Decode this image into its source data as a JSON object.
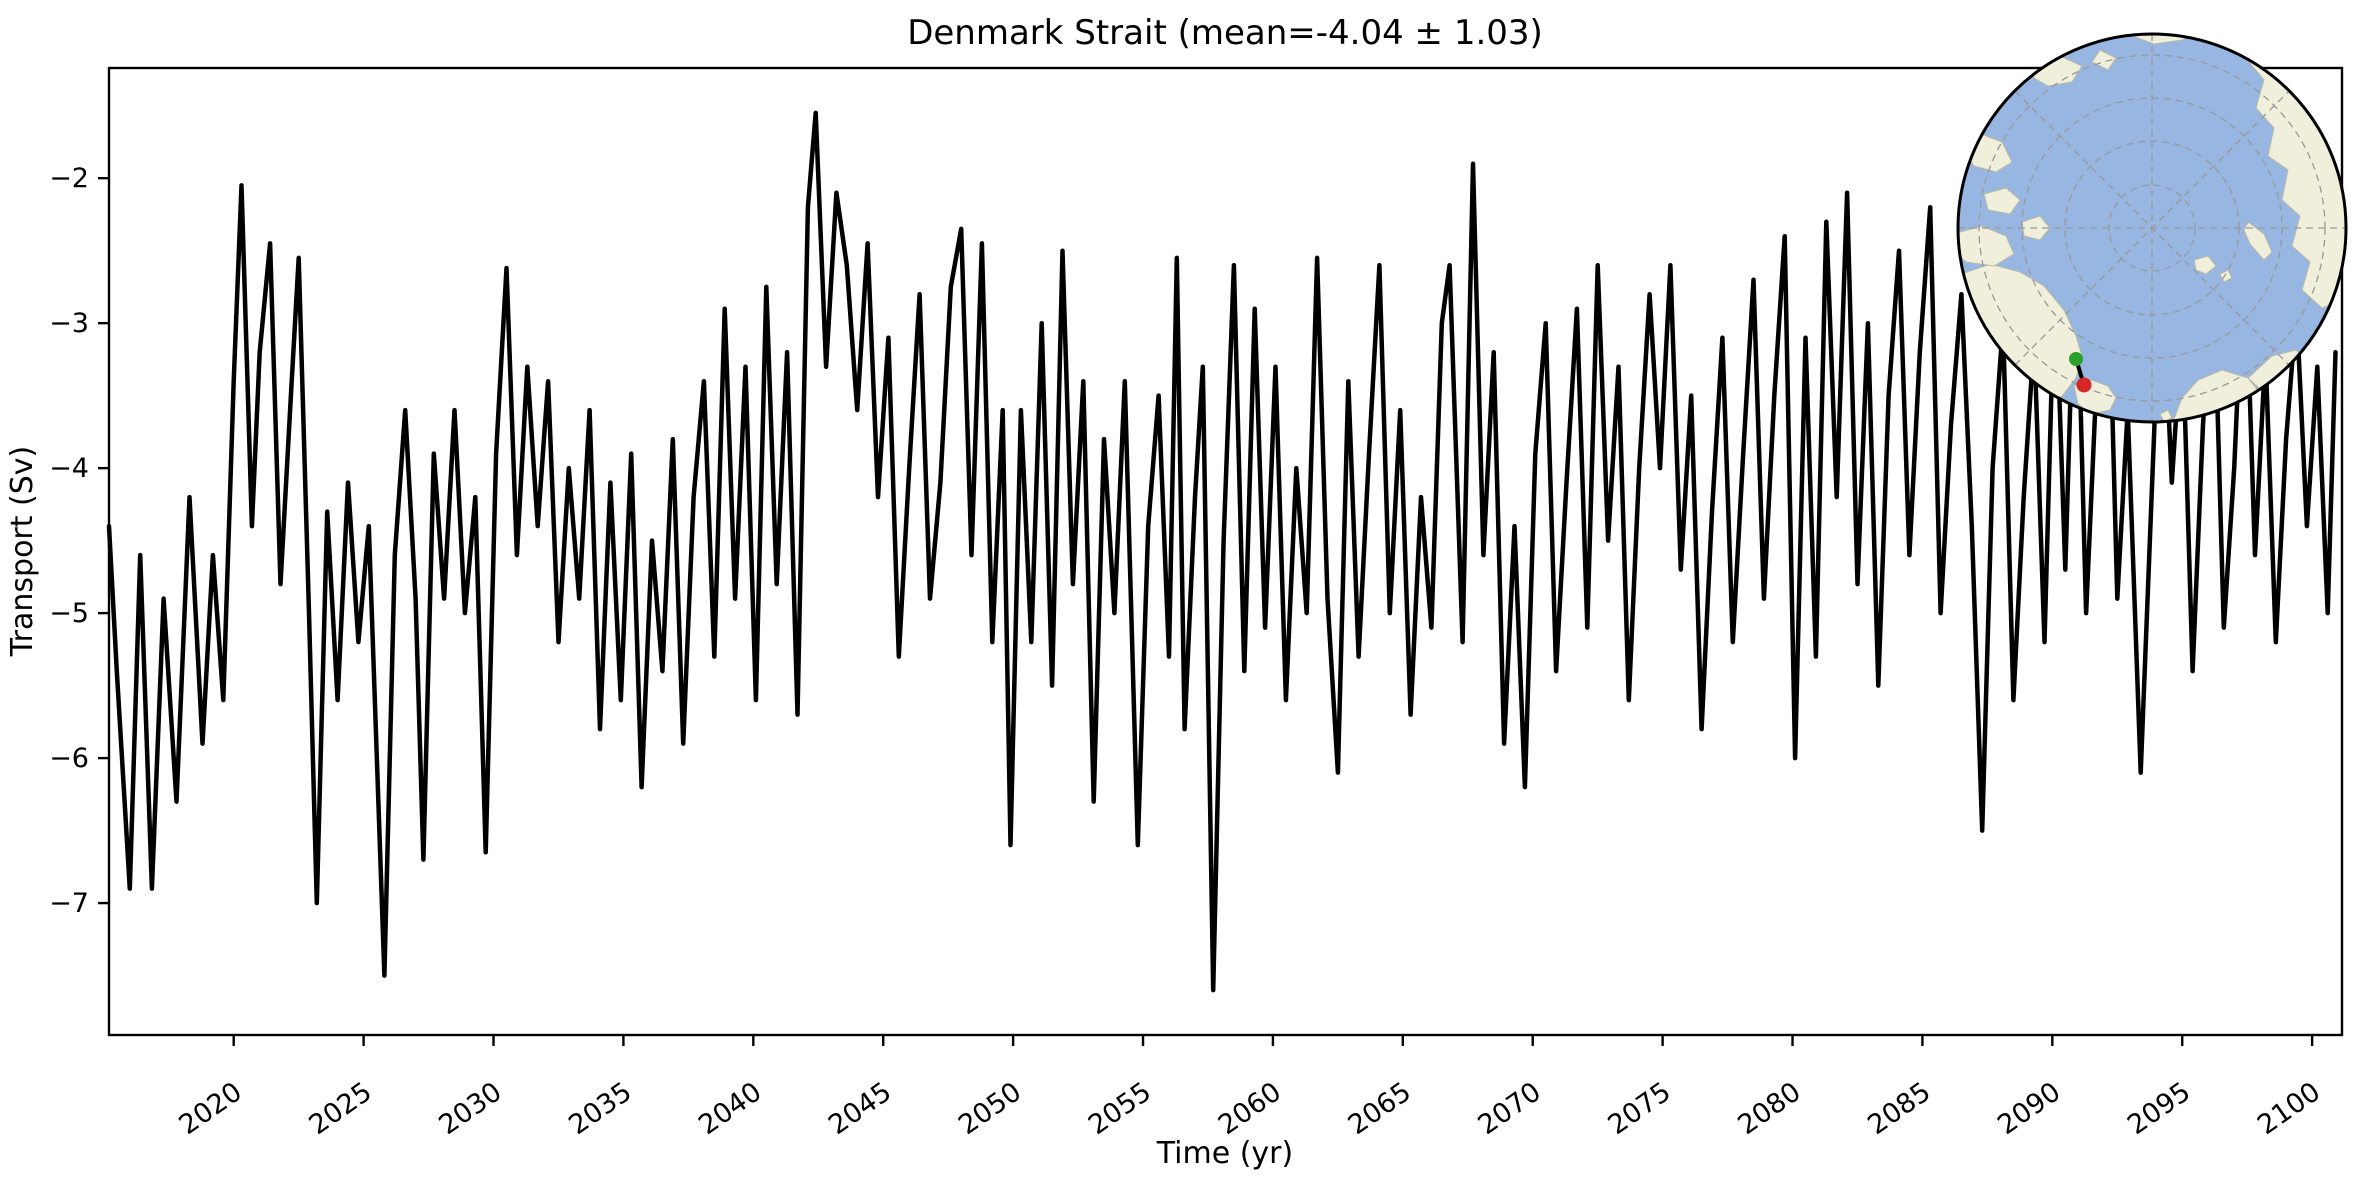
{
  "chart_data": {
    "type": "line",
    "title": "Denmark Strait (mean=-4.04 ± 1.03)",
    "xlabel": "Time (yr)",
    "ylabel": "Transport (Sv)",
    "xlim": [
      2015.2,
      2101.15
    ],
    "ylim": [
      -7.91,
      -1.24
    ],
    "grid": false,
    "legend": "none",
    "line_color": "#000000",
    "line_width": 4.5,
    "xticks": [
      2020,
      2025,
      2030,
      2035,
      2040,
      2045,
      2050,
      2055,
      2060,
      2065,
      2070,
      2075,
      2080,
      2085,
      2090,
      2095,
      2100
    ],
    "xtick_labels": [
      "2020",
      "2025",
      "2030",
      "2035",
      "2040",
      "2045",
      "2050",
      "2055",
      "2060",
      "2065",
      "2070",
      "2075",
      "2080",
      "2085",
      "2090",
      "2095",
      "2100"
    ],
    "yticks": [
      -2,
      -3,
      -4,
      -5,
      -6,
      -7
    ],
    "ytick_labels": [
      "−2",
      "−3",
      "−4",
      "−5",
      "−6",
      "−7"
    ],
    "mean": -4.04,
    "std": 1.03,
    "series": {
      "name": "Denmark Strait transport",
      "x": [
        2015.2,
        2015.5,
        2016.0,
        2016.4,
        2016.85,
        2017.3,
        2017.8,
        2018.3,
        2018.8,
        2019.2,
        2019.6,
        2020.0,
        2020.3,
        2020.7,
        2021.0,
        2021.4,
        2021.8,
        2022.2,
        2022.5,
        2022.9,
        2023.2,
        2023.6,
        2024.0,
        2024.4,
        2024.8,
        2025.2,
        2025.8,
        2026.2,
        2026.6,
        2027.0,
        2027.3,
        2027.7,
        2028.1,
        2028.5,
        2028.9,
        2029.3,
        2029.7,
        2030.1,
        2030.5,
        2030.9,
        2031.3,
        2031.7,
        2032.1,
        2032.5,
        2032.9,
        2033.3,
        2033.7,
        2034.1,
        2034.5,
        2034.9,
        2035.3,
        2035.7,
        2036.1,
        2036.5,
        2036.9,
        2037.3,
        2037.7,
        2038.1,
        2038.5,
        2038.9,
        2039.3,
        2039.7,
        2040.1,
        2040.5,
        2040.9,
        2041.3,
        2041.7,
        2042.1,
        2042.4,
        2042.8,
        2043.2,
        2043.6,
        2044.0,
        2044.4,
        2044.8,
        2045.2,
        2045.6,
        2046.0,
        2046.4,
        2046.8,
        2047.2,
        2047.6,
        2048.0,
        2048.4,
        2048.8,
        2049.2,
        2049.6,
        2049.9,
        2050.3,
        2050.7,
        2051.1,
        2051.5,
        2051.9,
        2052.3,
        2052.7,
        2053.1,
        2053.5,
        2053.9,
        2054.3,
        2054.8,
        2055.2,
        2055.6,
        2056.0,
        2056.3,
        2056.6,
        2057.0,
        2057.3,
        2057.7,
        2058.1,
        2058.5,
        2058.9,
        2059.3,
        2059.7,
        2060.1,
        2060.5,
        2060.9,
        2061.3,
        2061.7,
        2062.1,
        2062.5,
        2062.9,
        2063.3,
        2063.7,
        2064.1,
        2064.5,
        2064.9,
        2065.3,
        2065.7,
        2066.1,
        2066.5,
        2066.8,
        2067.3,
        2067.7,
        2068.1,
        2068.5,
        2068.9,
        2069.3,
        2069.7,
        2070.1,
        2070.5,
        2070.9,
        2071.3,
        2071.7,
        2072.1,
        2072.5,
        2072.9,
        2073.3,
        2073.7,
        2074.1,
        2074.5,
        2074.9,
        2075.3,
        2075.7,
        2076.1,
        2076.5,
        2076.9,
        2077.3,
        2077.7,
        2078.1,
        2078.5,
        2078.9,
        2079.3,
        2079.7,
        2080.1,
        2080.5,
        2080.9,
        2081.3,
        2081.7,
        2082.1,
        2082.5,
        2082.9,
        2083.3,
        2083.7,
        2084.1,
        2084.5,
        2084.9,
        2085.3,
        2085.7,
        2086.1,
        2086.5,
        2086.9,
        2087.3,
        2087.7,
        2088.1,
        2088.5,
        2088.9,
        2089.3,
        2089.7,
        2090.1,
        2090.5,
        2090.9,
        2091.3,
        2091.7,
        2092.1,
        2092.5,
        2092.9,
        2093.4,
        2093.8,
        2094.2,
        2094.6,
        2095.0,
        2095.4,
        2095.8,
        2096.2,
        2096.6,
        2097.0,
        2097.4,
        2097.8,
        2098.2,
        2098.6,
        2099.0,
        2099.4,
        2099.8,
        2100.2,
        2100.6,
        2100.9
      ],
      "y": [
        -4.4,
        -5.4,
        -6.9,
        -4.6,
        -6.9,
        -4.9,
        -6.3,
        -4.2,
        -5.9,
        -4.6,
        -5.6,
        -3.4,
        -2.05,
        -4.4,
        -3.2,
        -2.45,
        -4.8,
        -3.5,
        -2.55,
        -5.0,
        -7.0,
        -4.3,
        -5.6,
        -4.1,
        -5.2,
        -4.4,
        -7.5,
        -4.6,
        -3.6,
        -4.9,
        -6.7,
        -3.9,
        -4.9,
        -3.6,
        -5.0,
        -4.2,
        -6.65,
        -3.9,
        -2.62,
        -4.6,
        -3.3,
        -4.4,
        -3.4,
        -5.2,
        -4.0,
        -4.9,
        -3.6,
        -5.8,
        -4.1,
        -5.6,
        -3.9,
        -6.2,
        -4.5,
        -5.4,
        -3.8,
        -5.9,
        -4.2,
        -3.4,
        -5.3,
        -2.9,
        -4.9,
        -3.3,
        -5.6,
        -2.75,
        -4.8,
        -3.2,
        -5.7,
        -2.2,
        -1.55,
        -3.3,
        -2.1,
        -2.6,
        -3.6,
        -2.45,
        -4.2,
        -3.1,
        -5.3,
        -4.0,
        -2.8,
        -4.9,
        -4.1,
        -2.75,
        -2.35,
        -4.6,
        -2.45,
        -5.2,
        -3.6,
        -6.6,
        -3.6,
        -5.2,
        -3.0,
        -5.5,
        -2.5,
        -4.8,
        -3.4,
        -6.3,
        -3.8,
        -5.0,
        -3.4,
        -6.6,
        -4.4,
        -3.5,
        -5.3,
        -2.55,
        -5.8,
        -4.2,
        -3.3,
        -7.6,
        -4.5,
        -2.6,
        -5.4,
        -2.9,
        -5.1,
        -3.3,
        -5.6,
        -4.0,
        -5.0,
        -2.55,
        -4.9,
        -6.1,
        -3.4,
        -5.3,
        -3.9,
        -2.6,
        -5.0,
        -3.6,
        -5.7,
        -4.2,
        -5.1,
        -3.0,
        -2.6,
        -5.2,
        -1.9,
        -4.6,
        -3.2,
        -5.9,
        -4.4,
        -6.2,
        -3.9,
        -3.0,
        -5.4,
        -4.1,
        -2.9,
        -5.1,
        -2.6,
        -4.5,
        -3.3,
        -5.6,
        -4.0,
        -2.8,
        -4.0,
        -2.6,
        -4.7,
        -3.5,
        -5.8,
        -4.3,
        -3.1,
        -5.2,
        -3.9,
        -2.7,
        -4.9,
        -3.5,
        -2.4,
        -6.0,
        -3.1,
        -5.3,
        -2.3,
        -4.2,
        -2.1,
        -4.8,
        -3.0,
        -5.5,
        -3.5,
        -2.5,
        -4.6,
        -3.2,
        -2.2,
        -5.0,
        -3.7,
        -2.8,
        -4.4,
        -6.5,
        -4.0,
        -3.0,
        -5.6,
        -4.2,
        -3.1,
        -5.2,
        -2.6,
        -4.7,
        -2.3,
        -5.0,
        -3.4,
        -2.2,
        -4.9,
        -3.6,
        -6.1,
        -4.3,
        -2.5,
        -4.1,
        -3.0,
        -5.4,
        -3.7,
        -2.6,
        -5.1,
        -4.0,
        -2.4,
        -4.6,
        -3.2,
        -5.2,
        -3.8,
        -2.9,
        -4.4,
        -3.3,
        -5.0,
        -3.2
      ]
    }
  },
  "inset": {
    "name": "polar-map-inset",
    "projection": "north-polar-stereographic",
    "ocean_color": "#97B6E1",
    "land_color": "#EFEFDB",
    "land_edge_color": "#b9b9a4",
    "grid_color": "#999999",
    "border_color": "#000000",
    "section_line_color": "#000000",
    "start_marker_color": "#2ca02c",
    "end_marker_color": "#d62728"
  }
}
